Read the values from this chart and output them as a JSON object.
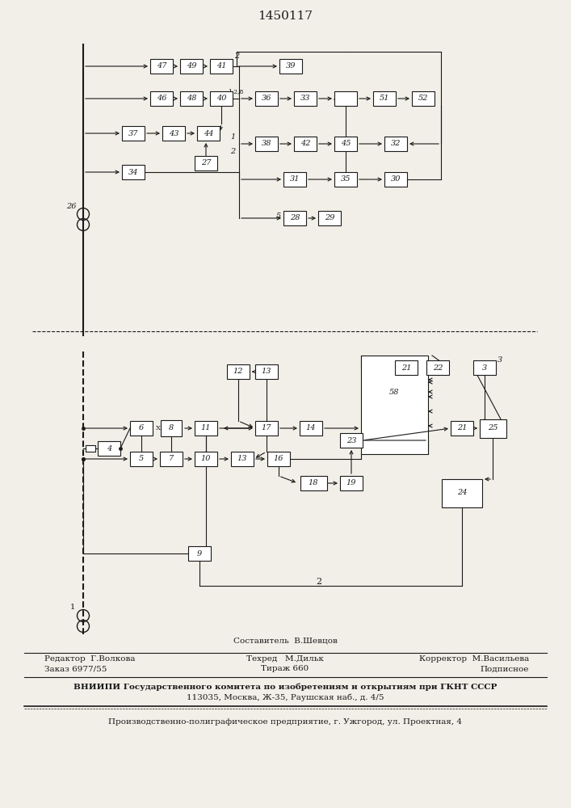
{
  "title": "1450117",
  "bg_color": "#f2efe8",
  "lc": "#1a1a1a",
  "footer": {
    "composer": "Составитель  В.Шевцов",
    "editor": "Редактор  Г.Волкова",
    "techred": "Техред   М.Дильк",
    "corrector": "Корректор  М.Васильева",
    "order": "Заказ 6977/55",
    "tirazh": "Тираж 660",
    "podpisnoe": "Подписное",
    "vniiipi1": "ВНИИПИ Государственного комитета по изобретениям и открытиям при ГКНТ СССР",
    "vniiipi2": "113035, Москва, Ж-35, Раушская наб., д. 4/5",
    "prod": "Производственно-полиграфическое предприятие, г. Ужгород, ул. Проектная, 4"
  }
}
